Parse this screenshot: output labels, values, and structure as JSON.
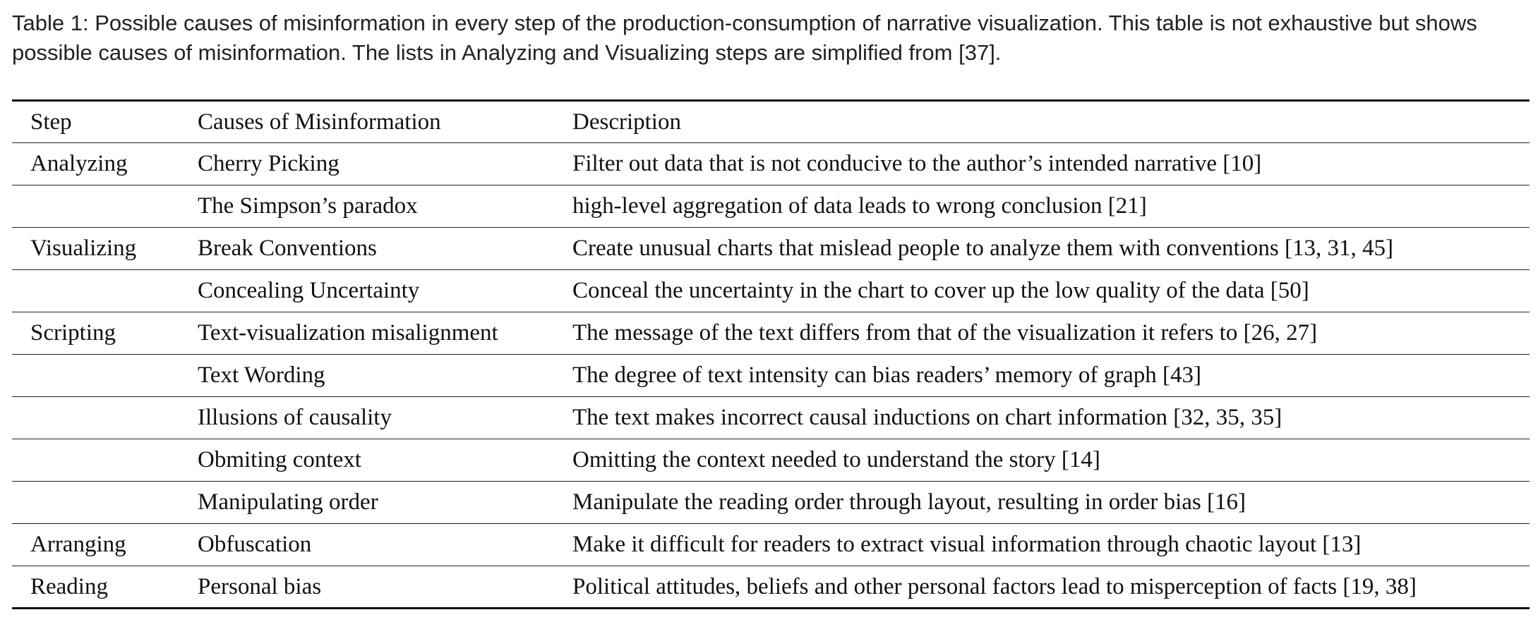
{
  "caption": "Table 1: Possible causes of misinformation in every step of the production-consumption of narrative visualization. This table is not exhaustive but shows possible causes of misinformation. The lists in Analyzing and Visualizing steps are simplified from [37].",
  "table": {
    "headers": [
      "Step",
      "Causes of Misinformation",
      "Description"
    ],
    "rows": [
      {
        "step": "Analyzing",
        "cause": "Cherry Picking",
        "description": "Filter out data that is not conducive to the author’s intended narrative [10]"
      },
      {
        "step": "",
        "cause": "The Simpson’s paradox",
        "description": "high-level aggregation of data leads to wrong conclusion [21]"
      },
      {
        "step": "Visualizing",
        "cause": "Break Conventions",
        "description": "Create unusual charts that mislead people to analyze them with conventions [13, 31, 45]"
      },
      {
        "step": "",
        "cause": "Concealing Uncertainty",
        "description": "Conceal the uncertainty in the chart to cover up the low quality of the data [50]"
      },
      {
        "step": "Scripting",
        "cause": "Text-visualization misalignment",
        "description": "The message of the text differs from that of the visualization it refers to [26, 27]"
      },
      {
        "step": "",
        "cause": "Text Wording",
        "description": "The degree of text intensity can bias readers’ memory of graph [43]"
      },
      {
        "step": "",
        "cause": "Illusions of causality",
        "description": "The text makes incorrect causal inductions on chart information [32, 35, 35]"
      },
      {
        "step": "",
        "cause": "Obmiting context",
        "description": "Omitting the context needed to understand the story [14]"
      },
      {
        "step": "",
        "cause": "Manipulating order",
        "description": "Manipulate the reading order through layout, resulting in order bias [16]"
      },
      {
        "step": "Arranging",
        "cause": "Obfuscation",
        "description": "Make it difficult for readers to extract visual information through chaotic layout [13]"
      },
      {
        "step": "Reading",
        "cause": "Personal bias",
        "description": "Political attitudes, beliefs and other personal factors lead to misperception of facts [19, 38]"
      }
    ]
  }
}
